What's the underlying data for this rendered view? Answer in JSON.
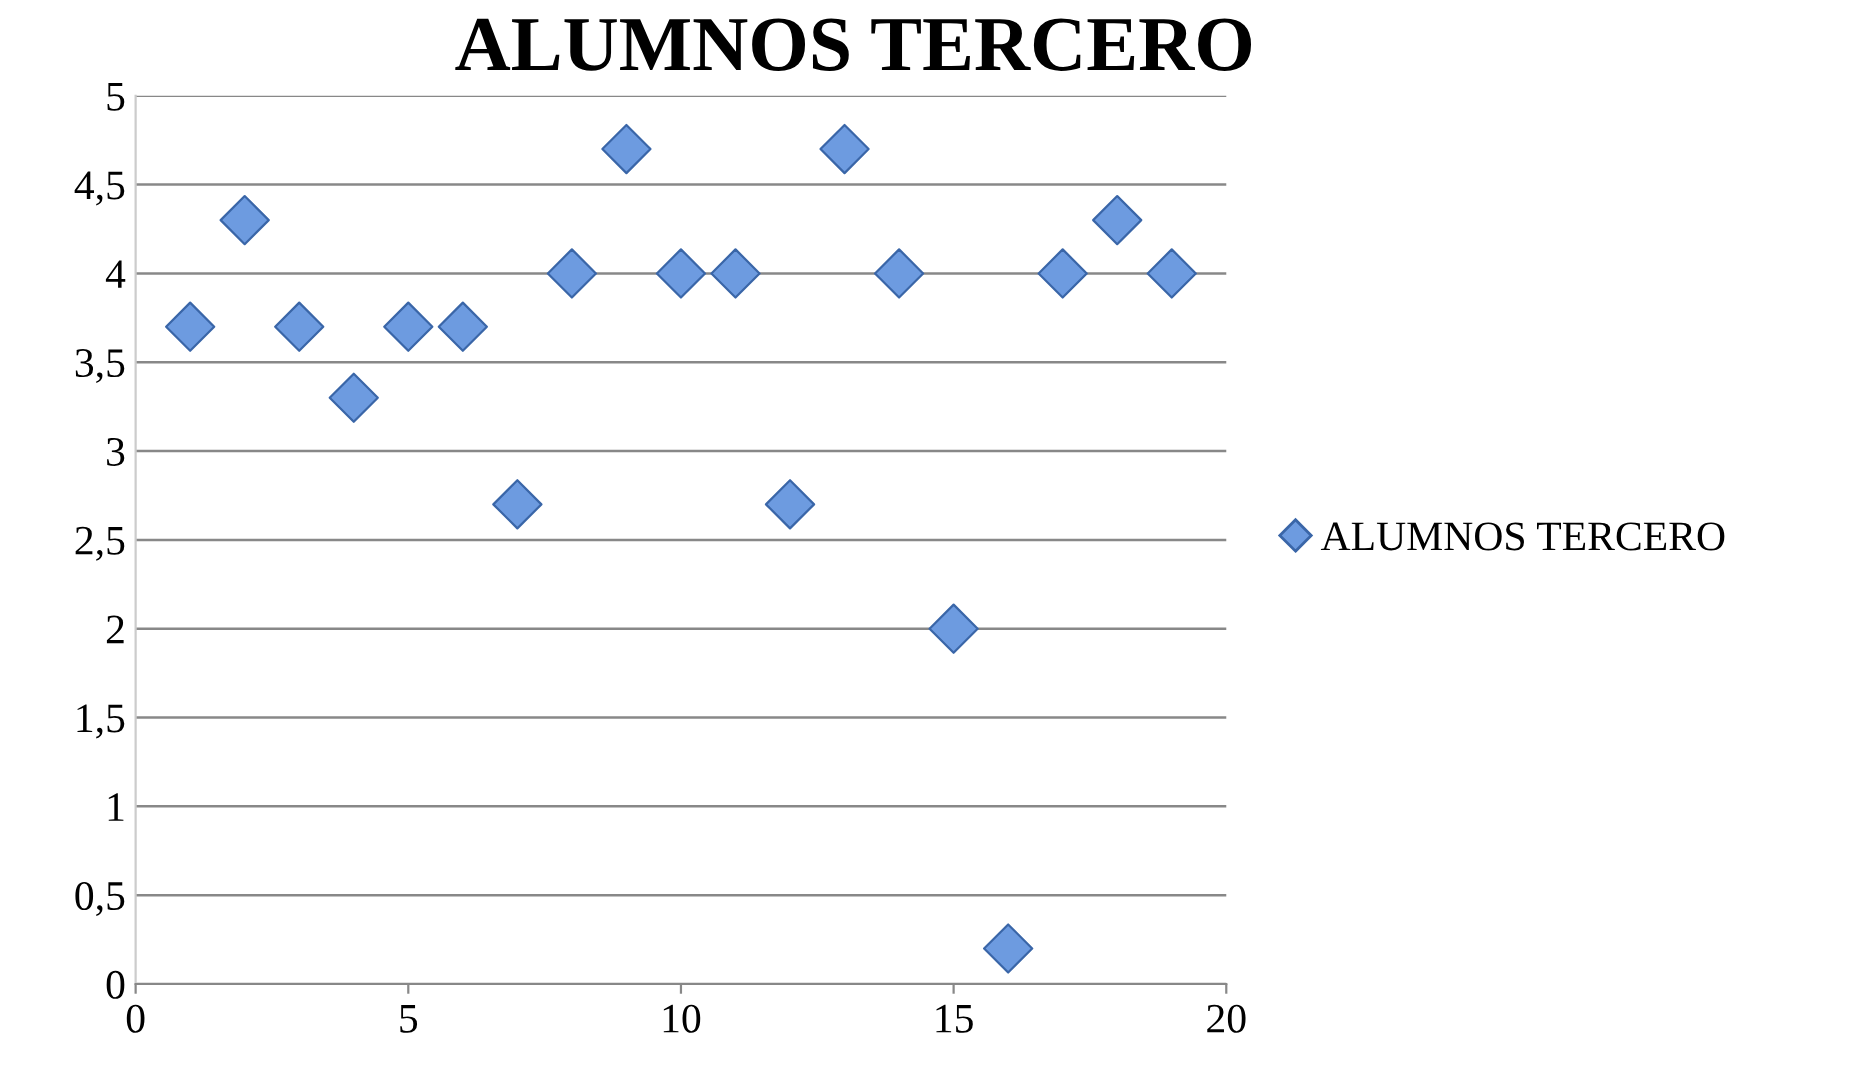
{
  "chart_data": {
    "type": "scatter",
    "title": "ALUMNOS TERCERO",
    "x": [
      1,
      2,
      3,
      4,
      5,
      6,
      7,
      8,
      9,
      10,
      11,
      12,
      13,
      14,
      15,
      16,
      17,
      18,
      19
    ],
    "series": [
      {
        "name": "ALUMNOS TERCERO",
        "color": "#6d9be0",
        "values": [
          3.7,
          4.3,
          3.7,
          3.3,
          3.7,
          3.7,
          2.7,
          4.0,
          4.7,
          4.0,
          4.0,
          2.7,
          4.7,
          4.0,
          2.0,
          0.2,
          4.0,
          4.3,
          4.0
        ]
      }
    ],
    "xlim": [
      0,
      20
    ],
    "xticks": [
      0,
      5,
      10,
      15,
      20
    ],
    "ylim": [
      0,
      5
    ],
    "yticks": [
      0,
      {
        "value": 0.5,
        "label": "0,5"
      },
      1,
      {
        "value": 1.5,
        "label": "1,5"
      },
      2,
      {
        "value": 2.5,
        "label": "2,5"
      },
      3,
      {
        "value": 3.5,
        "label": "3,5"
      },
      4,
      {
        "value": 4.5,
        "label": "4,5"
      },
      5
    ],
    "grid": "y",
    "legend": "right",
    "marker": "diamond"
  }
}
